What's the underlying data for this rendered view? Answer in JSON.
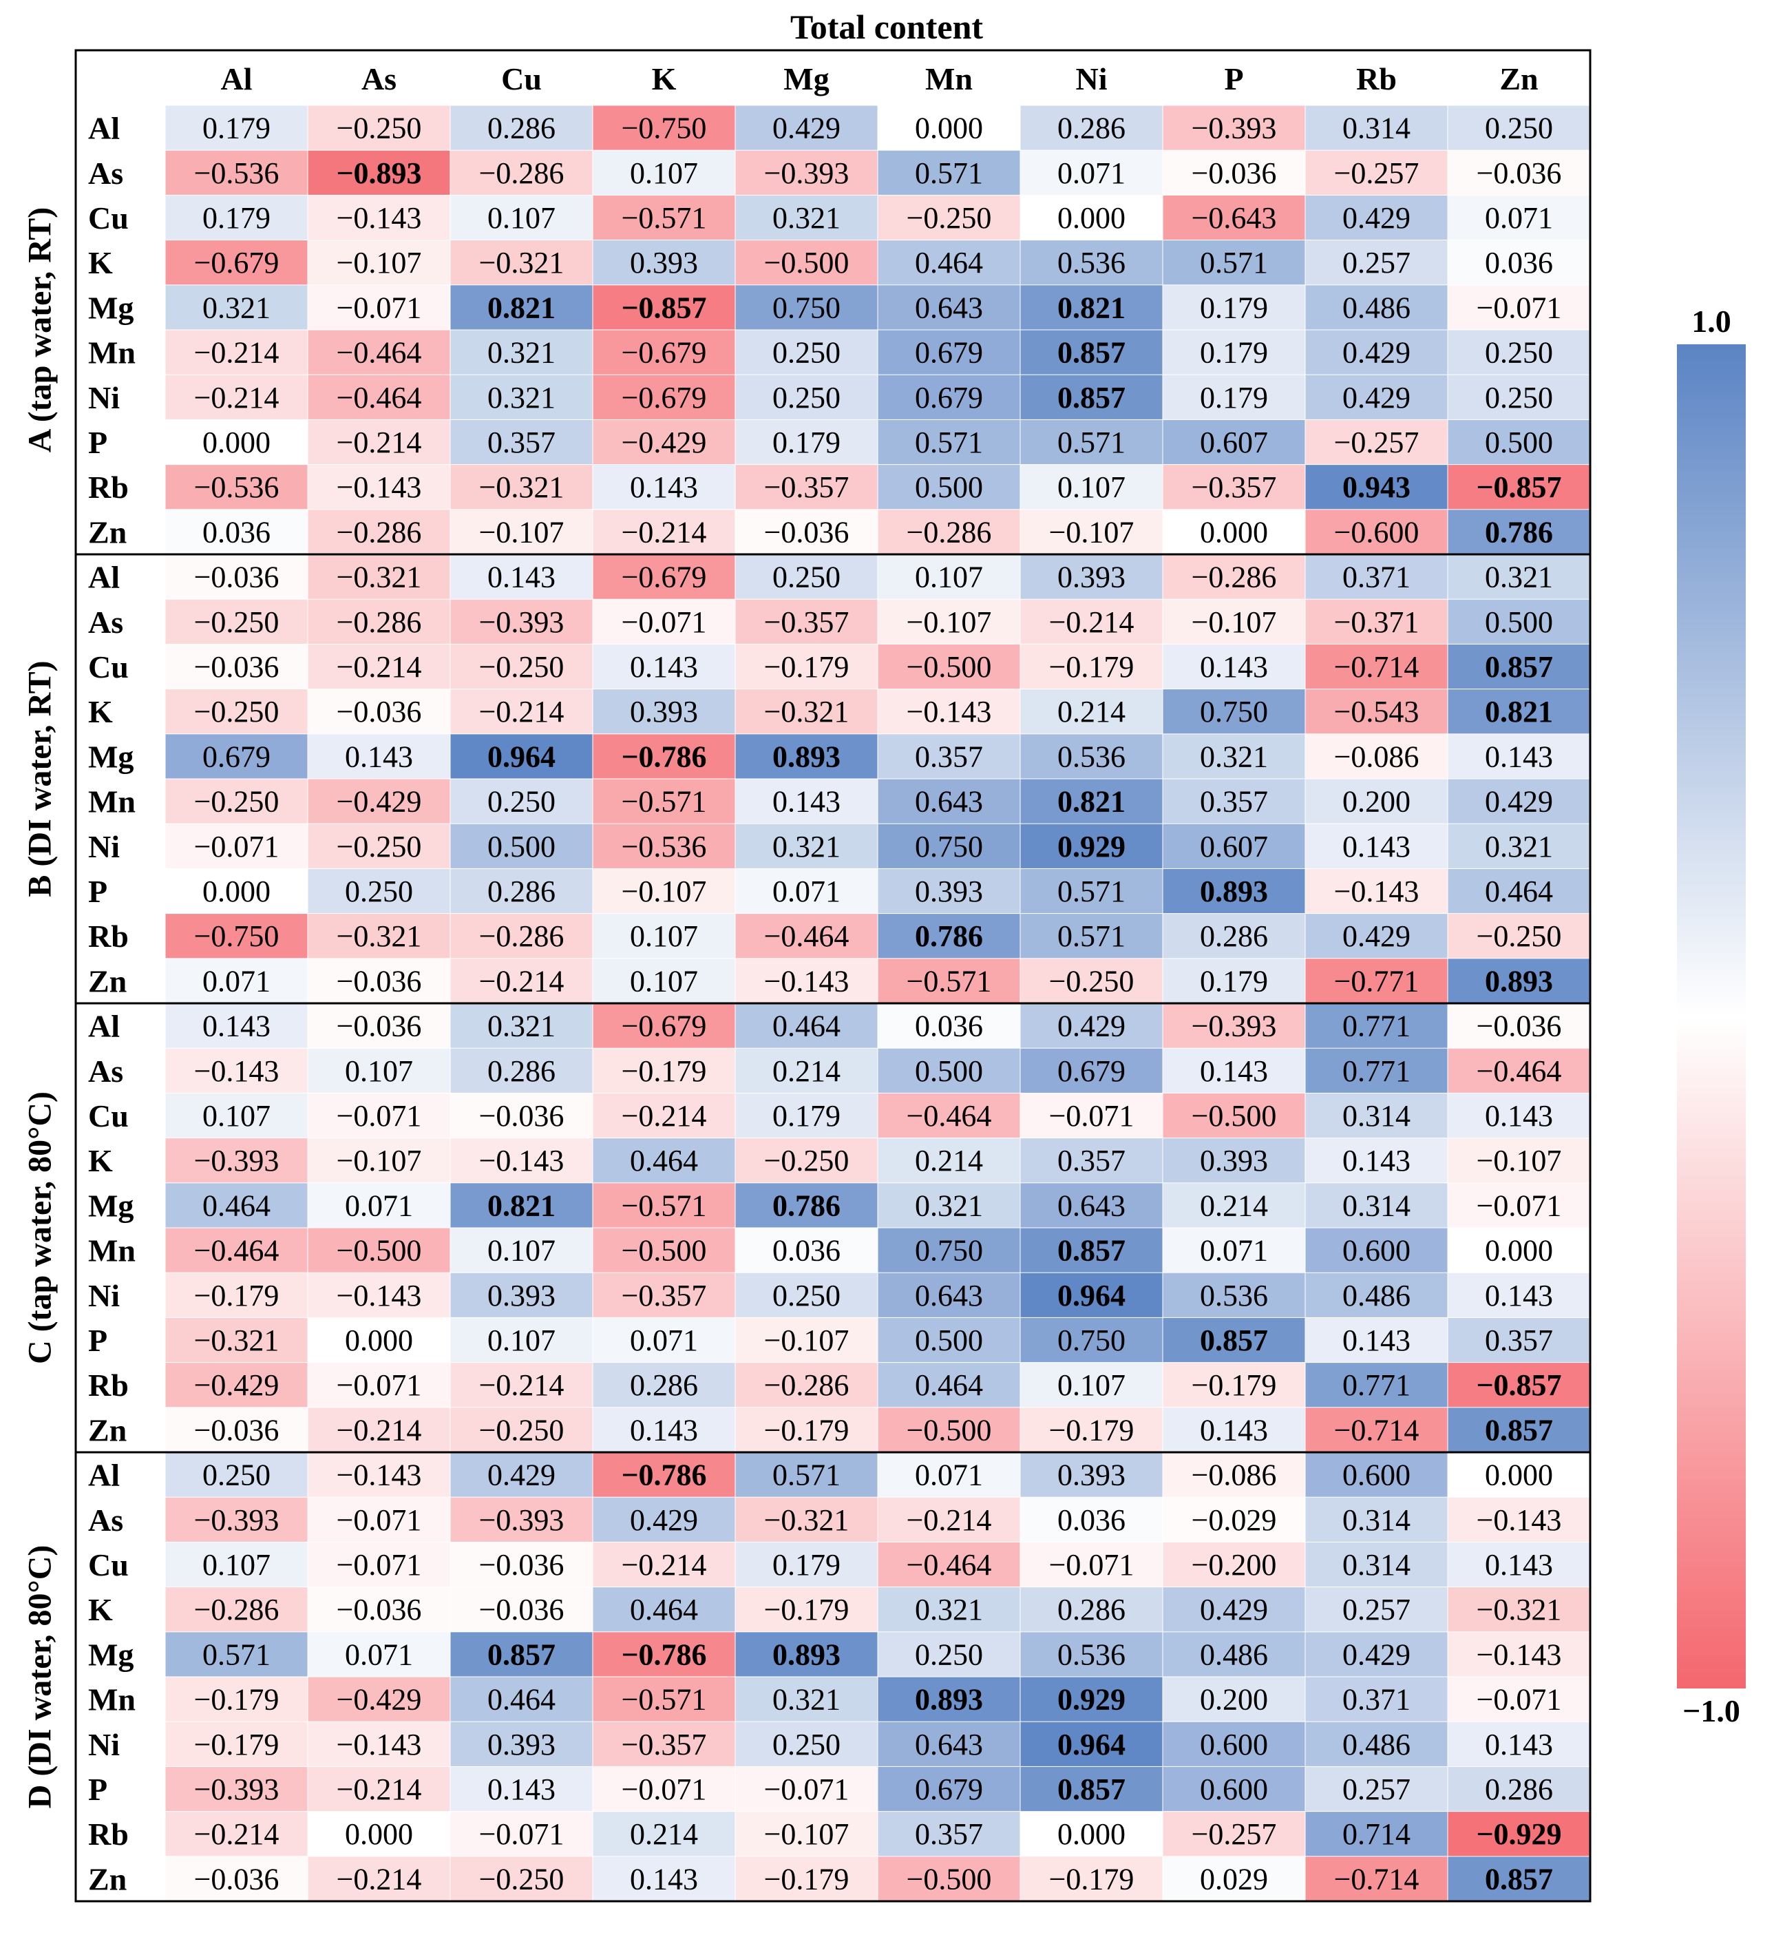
{
  "chart_data": {
    "type": "heatmap",
    "title": "Total content",
    "columns": [
      "Al",
      "As",
      "Cu",
      "K",
      "Mg",
      "Mn",
      "Ni",
      "P",
      "Rb",
      "Zn"
    ],
    "rows": [
      "Al",
      "As",
      "Cu",
      "K",
      "Mg",
      "Mn",
      "Ni",
      "P",
      "Rb",
      "Zn"
    ],
    "color_scale": {
      "min": -1.0,
      "max": 1.0,
      "min_label": "−1.0",
      "max_label": "1.0",
      "low_color": "#f4676e",
      "mid_color": "#ffffff",
      "high_color": "#5b84c4"
    },
    "groups": [
      {
        "label": "A (tap water, RT)",
        "values": [
          [
            0.179,
            -0.25,
            0.286,
            -0.75,
            0.429,
            0.0,
            0.286,
            -0.393,
            0.314,
            0.25
          ],
          [
            -0.536,
            -0.893,
            -0.286,
            0.107,
            -0.393,
            0.571,
            0.071,
            -0.036,
            -0.257,
            -0.036
          ],
          [
            0.179,
            -0.143,
            0.107,
            -0.571,
            0.321,
            -0.25,
            0.0,
            -0.643,
            0.429,
            0.071
          ],
          [
            -0.679,
            -0.107,
            -0.321,
            0.393,
            -0.5,
            0.464,
            0.536,
            0.571,
            0.257,
            0.036
          ],
          [
            0.321,
            -0.071,
            0.821,
            -0.857,
            0.75,
            0.643,
            0.821,
            0.179,
            0.486,
            -0.071
          ],
          [
            -0.214,
            -0.464,
            0.321,
            -0.679,
            0.25,
            0.679,
            0.857,
            0.179,
            0.429,
            0.25
          ],
          [
            -0.214,
            -0.464,
            0.321,
            -0.679,
            0.25,
            0.679,
            0.857,
            0.179,
            0.429,
            0.25
          ],
          [
            0.0,
            -0.214,
            0.357,
            -0.429,
            0.179,
            0.571,
            0.571,
            0.607,
            -0.257,
            0.5
          ],
          [
            -0.536,
            -0.143,
            -0.321,
            0.143,
            -0.357,
            0.5,
            0.107,
            -0.357,
            0.943,
            -0.857
          ],
          [
            0.036,
            -0.286,
            -0.107,
            -0.214,
            -0.036,
            -0.286,
            -0.107,
            0.0,
            -0.6,
            0.786
          ]
        ],
        "bold": [
          [
            1,
            1
          ],
          [
            4,
            2
          ],
          [
            4,
            3
          ],
          [
            4,
            6
          ],
          [
            5,
            6
          ],
          [
            6,
            6
          ],
          [
            8,
            8
          ],
          [
            8,
            9
          ],
          [
            9,
            9
          ]
        ]
      },
      {
        "label": "B (DI water, RT)",
        "values": [
          [
            -0.036,
            -0.321,
            0.143,
            -0.679,
            0.25,
            0.107,
            0.393,
            -0.286,
            0.371,
            0.321
          ],
          [
            -0.25,
            -0.286,
            -0.393,
            -0.071,
            -0.357,
            -0.107,
            -0.214,
            -0.107,
            -0.371,
            0.5
          ],
          [
            -0.036,
            -0.214,
            -0.25,
            0.143,
            -0.179,
            -0.5,
            -0.179,
            0.143,
            -0.714,
            0.857
          ],
          [
            -0.25,
            -0.036,
            -0.214,
            0.393,
            -0.321,
            -0.143,
            0.214,
            0.75,
            -0.543,
            0.821
          ],
          [
            0.679,
            0.143,
            0.964,
            -0.786,
            0.893,
            0.357,
            0.536,
            0.321,
            -0.086,
            0.143
          ],
          [
            -0.25,
            -0.429,
            0.25,
            -0.571,
            0.143,
            0.643,
            0.821,
            0.357,
            0.2,
            0.429
          ],
          [
            -0.071,
            -0.25,
            0.5,
            -0.536,
            0.321,
            0.75,
            0.929,
            0.607,
            0.143,
            0.321
          ],
          [
            0.0,
            0.25,
            0.286,
            -0.107,
            0.071,
            0.393,
            0.571,
            0.893,
            -0.143,
            0.464
          ],
          [
            -0.75,
            -0.321,
            -0.286,
            0.107,
            -0.464,
            0.786,
            0.571,
            0.286,
            0.429,
            -0.25
          ],
          [
            0.071,
            -0.036,
            -0.214,
            0.107,
            -0.143,
            -0.571,
            -0.25,
            0.179,
            -0.771,
            0.893
          ]
        ],
        "bold": [
          [
            2,
            9
          ],
          [
            3,
            9
          ],
          [
            4,
            2
          ],
          [
            4,
            3
          ],
          [
            4,
            4
          ],
          [
            5,
            6
          ],
          [
            6,
            6
          ],
          [
            7,
            7
          ],
          [
            8,
            5
          ],
          [
            9,
            9
          ]
        ]
      },
      {
        "label": "C (tap water, 80°C)",
        "values": [
          [
            0.143,
            -0.036,
            0.321,
            -0.679,
            0.464,
            0.036,
            0.429,
            -0.393,
            0.771,
            -0.036
          ],
          [
            -0.143,
            0.107,
            0.286,
            -0.179,
            0.214,
            0.5,
            0.679,
            0.143,
            0.771,
            -0.464
          ],
          [
            0.107,
            -0.071,
            -0.036,
            -0.214,
            0.179,
            -0.464,
            -0.071,
            -0.5,
            0.314,
            0.143
          ],
          [
            -0.393,
            -0.107,
            -0.143,
            0.464,
            -0.25,
            0.214,
            0.357,
            0.393,
            0.143,
            -0.107
          ],
          [
            0.464,
            0.071,
            0.821,
            -0.571,
            0.786,
            0.321,
            0.643,
            0.214,
            0.314,
            -0.071
          ],
          [
            -0.464,
            -0.5,
            0.107,
            -0.5,
            0.036,
            0.75,
            0.857,
            0.071,
            0.6,
            0.0
          ],
          [
            -0.179,
            -0.143,
            0.393,
            -0.357,
            0.25,
            0.643,
            0.964,
            0.536,
            0.486,
            0.143
          ],
          [
            -0.321,
            0.0,
            0.107,
            0.071,
            -0.107,
            0.5,
            0.75,
            0.857,
            0.143,
            0.357
          ],
          [
            -0.429,
            -0.071,
            -0.214,
            0.286,
            -0.286,
            0.464,
            0.107,
            -0.179,
            0.771,
            -0.857
          ],
          [
            -0.036,
            -0.214,
            -0.25,
            0.143,
            -0.179,
            -0.5,
            -0.179,
            0.143,
            -0.714,
            0.857
          ]
        ],
        "bold": [
          [
            4,
            2
          ],
          [
            4,
            4
          ],
          [
            5,
            6
          ],
          [
            6,
            6
          ],
          [
            7,
            7
          ],
          [
            8,
            9
          ],
          [
            9,
            9
          ]
        ]
      },
      {
        "label": "D (DI water, 80°C)",
        "values": [
          [
            0.25,
            -0.143,
            0.429,
            -0.786,
            0.571,
            0.071,
            0.393,
            -0.086,
            0.6,
            0.0
          ],
          [
            -0.393,
            -0.071,
            -0.393,
            0.429,
            -0.321,
            -0.214,
            0.036,
            -0.029,
            0.314,
            -0.143
          ],
          [
            0.107,
            -0.071,
            -0.036,
            -0.214,
            0.179,
            -0.464,
            -0.071,
            -0.2,
            0.314,
            0.143
          ],
          [
            -0.286,
            -0.036,
            -0.036,
            0.464,
            -0.179,
            0.321,
            0.286,
            0.429,
            0.257,
            -0.321
          ],
          [
            0.571,
            0.071,
            0.857,
            -0.786,
            0.893,
            0.25,
            0.536,
            0.486,
            0.429,
            -0.143
          ],
          [
            -0.179,
            -0.429,
            0.464,
            -0.571,
            0.321,
            0.893,
            0.929,
            0.2,
            0.371,
            -0.071
          ],
          [
            -0.179,
            -0.143,
            0.393,
            -0.357,
            0.25,
            0.643,
            0.964,
            0.6,
            0.486,
            0.143
          ],
          [
            -0.393,
            -0.214,
            0.143,
            -0.071,
            -0.071,
            0.679,
            0.857,
            0.6,
            0.257,
            0.286
          ],
          [
            -0.214,
            0.0,
            -0.071,
            0.214,
            -0.107,
            0.357,
            0.0,
            -0.257,
            0.714,
            -0.929
          ],
          [
            -0.036,
            -0.214,
            -0.25,
            0.143,
            -0.179,
            -0.5,
            -0.179,
            0.029,
            -0.714,
            0.857
          ]
        ],
        "bold": [
          [
            0,
            3
          ],
          [
            4,
            2
          ],
          [
            4,
            3
          ],
          [
            4,
            4
          ],
          [
            5,
            5
          ],
          [
            5,
            6
          ],
          [
            6,
            6
          ],
          [
            7,
            6
          ],
          [
            8,
            9
          ],
          [
            9,
            9
          ]
        ]
      }
    ]
  }
}
